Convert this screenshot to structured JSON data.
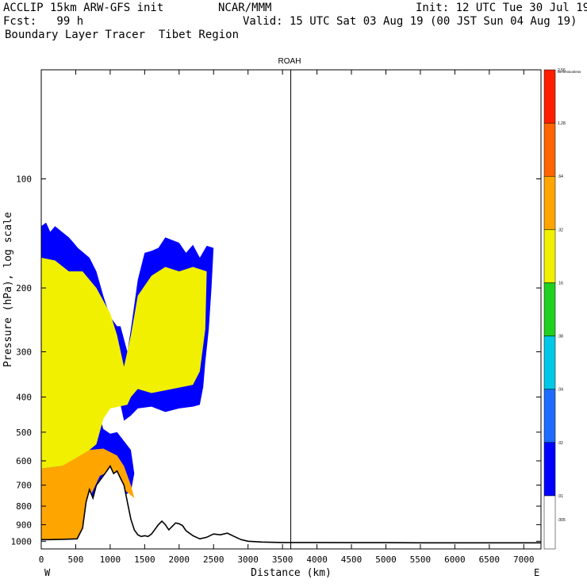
{
  "header": {
    "line1_left": "ACCLIP 15km ARW-GFS init",
    "line1_mid": "NCAR/MMM",
    "line1_right": "Init: 12 UTC Tue 30 Jul 19",
    "line2_left": "Fcst:   99 h",
    "line2_right": "Valid: 15 UTC Sat 03 Aug 19 (00 JST Sun 04 Aug 19)",
    "line3_left": "Boundary Layer Tracer  Tibet Region"
  },
  "chart_data": {
    "type": "heatmap",
    "title": "ROAH",
    "xlabel": "Distance (km)",
    "ylabel": "Pressure (hPa), log scale",
    "x_ticks": [
      0,
      500,
      1000,
      1500,
      2000,
      2500,
      3000,
      3500,
      4000,
      4500,
      5000,
      5500,
      6000,
      6500,
      7000
    ],
    "y_ticks": [
      100,
      200,
      300,
      400,
      500,
      600,
      700,
      800,
      900,
      1000
    ],
    "x_range": [
      0,
      7250
    ],
    "y_range": [
      1050,
      50
    ],
    "y_scale": "log",
    "x_end_labels": {
      "left": "W",
      "right": "E"
    },
    "vertical_marker_km": 3620,
    "colorbar": {
      "title": "Dimensionless",
      "levels": [
        ".005",
        ".01",
        ".02",
        ".04",
        ".08",
        ".16",
        ".32",
        ".64",
        "1.28",
        "2.56"
      ],
      "colors": [
        "#ffffff",
        "#0000ff",
        "#1e6bff",
        "#00c8e6",
        "#20d020",
        "#f0f000",
        "#ffa500",
        "#ff6400",
        "#ff1e00"
      ]
    },
    "terrain": {
      "name": "surface pressure",
      "x": [
        0,
        100,
        300,
        520,
        600,
        650,
        700,
        750,
        800,
        900,
        950,
        1000,
        1050,
        1100,
        1150,
        1200,
        1250,
        1300,
        1350,
        1400,
        1450,
        1500,
        1550,
        1600,
        1700,
        1750,
        1800,
        1850,
        1900,
        1950,
        2000,
        2050,
        2100,
        2200,
        2300,
        2400,
        2500,
        2600,
        2700,
        2800,
        2900,
        3000,
        3200,
        3500,
        4000,
        4500,
        5000,
        5500,
        6000,
        6500,
        7000,
        7250
      ],
      "p": [
        990,
        990,
        988,
        985,
        920,
        780,
        720,
        760,
        700,
        660,
        640,
        620,
        650,
        640,
        670,
        700,
        780,
        870,
        930,
        960,
        970,
        965,
        970,
        955,
        900,
        880,
        900,
        930,
        910,
        890,
        895,
        905,
        935,
        965,
        985,
        975,
        955,
        960,
        950,
        970,
        990,
        1000,
        1005,
        1008,
        1008,
        1009,
        1009,
        1010,
        1010,
        1010,
        1010,
        1010
      ]
    },
    "tracer_regions": [
      {
        "level": "0.01",
        "color_index": 1,
        "outline": [
          [
            0,
            135
          ],
          [
            70,
            132
          ],
          [
            130,
            140
          ],
          [
            200,
            135
          ],
          [
            300,
            140
          ],
          [
            400,
            145
          ],
          [
            470,
            150
          ],
          [
            530,
            155
          ],
          [
            700,
            165
          ],
          [
            800,
            180
          ],
          [
            900,
            210
          ],
          [
            1000,
            240
          ],
          [
            1100,
            255
          ],
          [
            1150,
            255
          ],
          [
            1250,
            300
          ],
          [
            1300,
            260
          ],
          [
            1400,
            190
          ],
          [
            1500,
            160
          ],
          [
            1600,
            158
          ],
          [
            1700,
            155
          ],
          [
            1800,
            145
          ],
          [
            2000,
            150
          ],
          [
            2100,
            160
          ],
          [
            2200,
            152
          ],
          [
            2300,
            165
          ],
          [
            2400,
            153
          ],
          [
            2500,
            155
          ],
          [
            2470,
            200
          ],
          [
            2430,
            260
          ],
          [
            2380,
            320
          ],
          [
            2350,
            375
          ],
          [
            2300,
            420
          ],
          [
            2200,
            425
          ],
          [
            2000,
            430
          ],
          [
            1800,
            440
          ],
          [
            1600,
            425
          ],
          [
            1400,
            430
          ],
          [
            1300,
            450
          ],
          [
            1200,
            465
          ],
          [
            1100,
            380
          ],
          [
            850,
            400
          ],
          [
            850,
            455
          ],
          [
            900,
            490
          ],
          [
            1000,
            505
          ],
          [
            1100,
            500
          ],
          [
            1300,
            560
          ],
          [
            1350,
            650
          ],
          [
            1300,
            730
          ],
          [
            0,
            990
          ]
        ]
      },
      {
        "level": "0.16",
        "color_index": 5,
        "outline": [
          [
            0,
            165
          ],
          [
            200,
            168
          ],
          [
            400,
            180
          ],
          [
            600,
            180
          ],
          [
            800,
            200
          ],
          [
            1000,
            235
          ],
          [
            1100,
            270
          ],
          [
            1200,
            330
          ],
          [
            1300,
            270
          ],
          [
            1400,
            210
          ],
          [
            1600,
            185
          ],
          [
            1800,
            175
          ],
          [
            2000,
            180
          ],
          [
            2200,
            175
          ],
          [
            2400,
            180
          ],
          [
            2380,
            260
          ],
          [
            2300,
            340
          ],
          [
            2200,
            370
          ],
          [
            1900,
            380
          ],
          [
            1600,
            390
          ],
          [
            1400,
            380
          ],
          [
            1300,
            400
          ],
          [
            1250,
            420
          ],
          [
            1000,
            430
          ],
          [
            900,
            460
          ],
          [
            800,
            540
          ],
          [
            700,
            560
          ],
          [
            550,
            600
          ],
          [
            300,
            620
          ],
          [
            0,
            630
          ]
        ]
      },
      {
        "level": "0.64",
        "color_index": 6,
        "outline": [
          [
            0,
            630
          ],
          [
            300,
            620
          ],
          [
            500,
            590
          ],
          [
            700,
            560
          ],
          [
            900,
            555
          ],
          [
            1100,
            580
          ],
          [
            1200,
            620
          ],
          [
            1300,
            700
          ],
          [
            1350,
            760
          ],
          [
            1200,
            720
          ],
          [
            1000,
            640
          ],
          [
            850,
            660
          ],
          [
            700,
            760
          ],
          [
            600,
            900
          ],
          [
            550,
            985
          ],
          [
            300,
            988
          ],
          [
            0,
            990
          ]
        ]
      }
    ]
  }
}
